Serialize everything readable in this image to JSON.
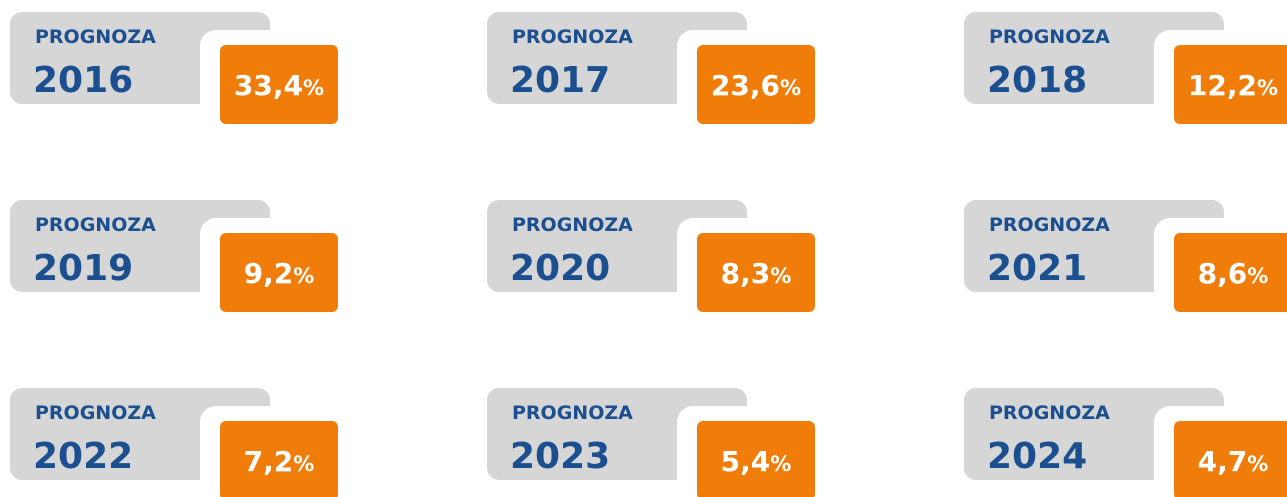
{
  "cards": [
    {
      "label": "PROGNOZA",
      "year": "2016",
      "value": "33,4",
      "unit": "%"
    },
    {
      "label": "PROGNOZA",
      "year": "2017",
      "value": "23,6",
      "unit": "%"
    },
    {
      "label": "PROGNOZA",
      "year": "2018",
      "value": "12,2",
      "unit": "%"
    },
    {
      "label": "PROGNOZA",
      "year": "2019",
      "value": "9,2",
      "unit": "%"
    },
    {
      "label": "PROGNOZA",
      "year": "2020",
      "value": "8,3",
      "unit": "%"
    },
    {
      "label": "PROGNOZA",
      "year": "2021",
      "value": "8,6",
      "unit": "%"
    },
    {
      "label": "PROGNOZA",
      "year": "2022",
      "value": "7,2",
      "unit": "%"
    },
    {
      "label": "PROGNOZA",
      "year": "2023",
      "value": "5,4",
      "unit": "%"
    },
    {
      "label": "PROGNOZA",
      "year": "2024",
      "value": "4,7",
      "unit": "%"
    }
  ]
}
